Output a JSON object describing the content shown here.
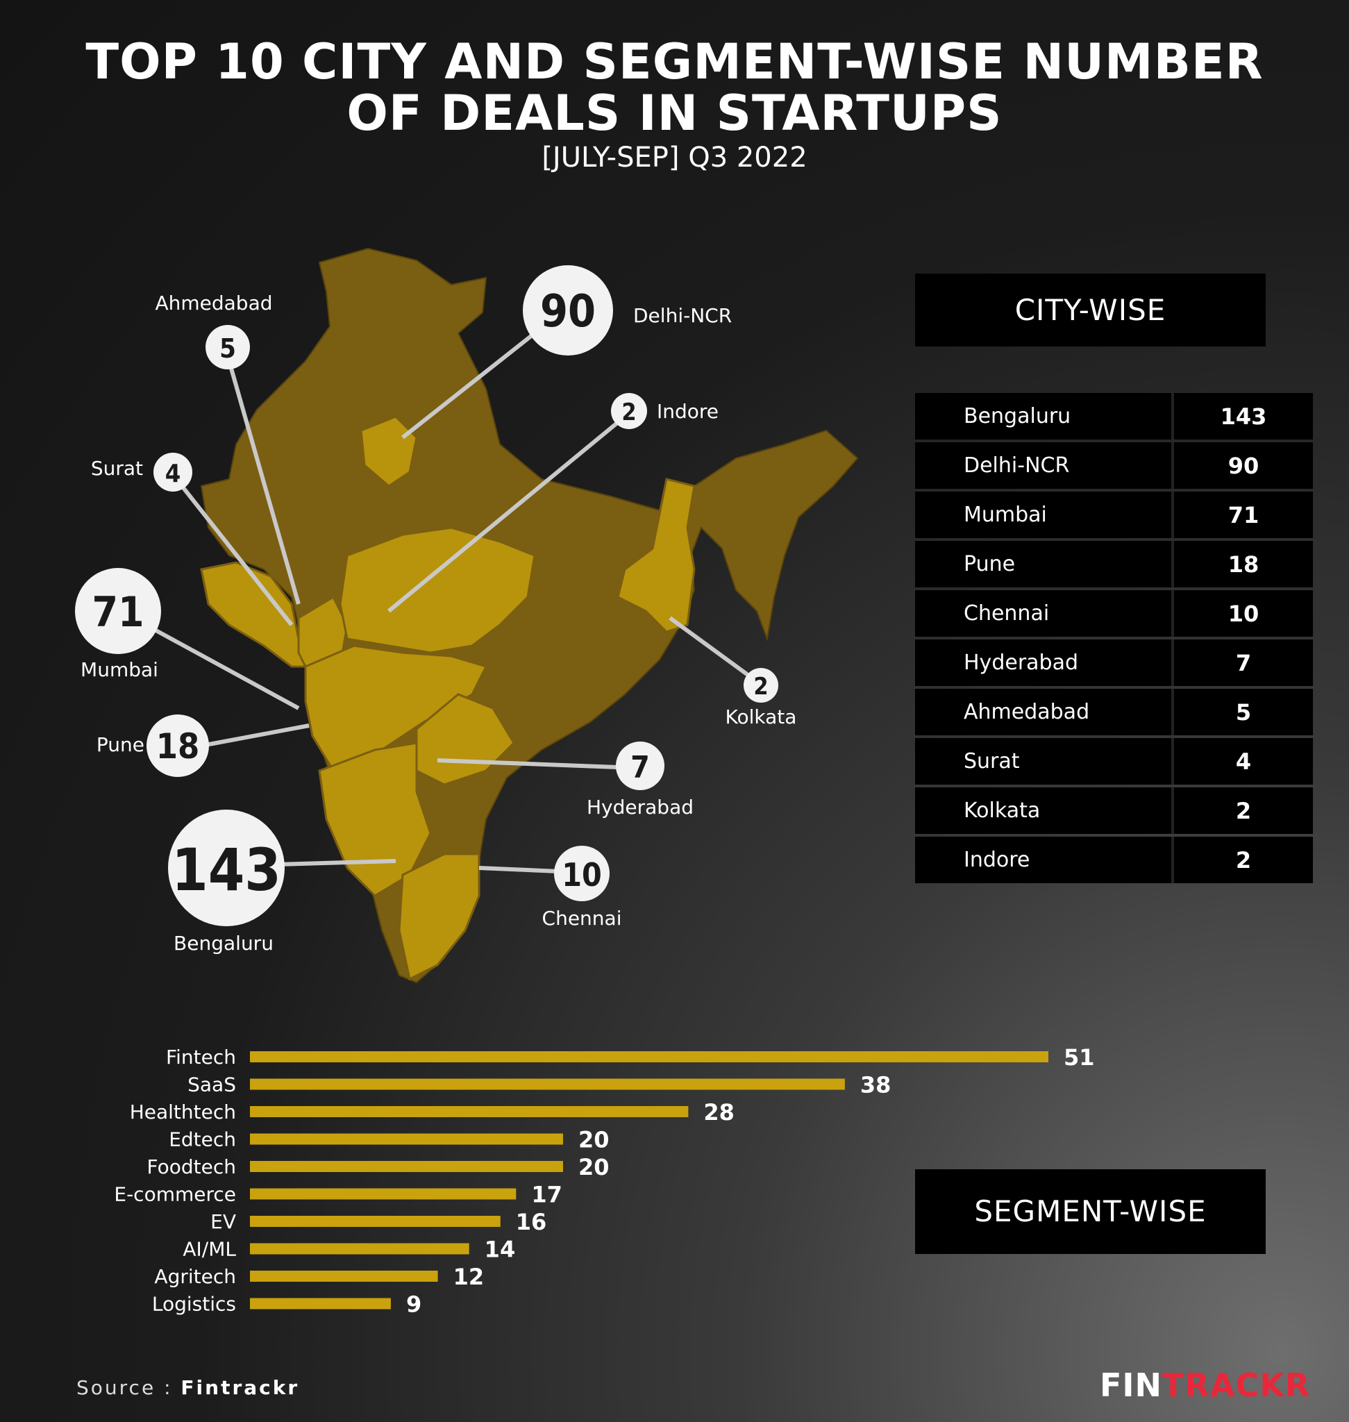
{
  "title_line1": "TOP 10 CITY AND SEGMENT-WISE NUMBER",
  "title_line2": "OF DEALS IN STARTUPS",
  "subtitle": "[JULY-SEP] Q3 2022",
  "city_header": "CITY-WISE",
  "segment_header": "SEGMENT-WISE",
  "source_label": "Source :",
  "source_name": "Fintrackr",
  "logo_part1": "FIN",
  "logo_part2": "TRACKR",
  "colors": {
    "map_dark": "#7a5e12",
    "map_gold": "#b8930c",
    "bar_gold": "#c9a20e",
    "bubble": "#f2f2f2",
    "logo_red": "#e8283a"
  },
  "chart_data": [
    {
      "type": "table",
      "title": "CITY-WISE",
      "rows": [
        {
          "city": "Bengaluru",
          "deals": 143
        },
        {
          "city": "Delhi-NCR",
          "deals": 90
        },
        {
          "city": "Mumbai",
          "deals": 71
        },
        {
          "city": "Pune",
          "deals": 18
        },
        {
          "city": "Chennai",
          "deals": 10
        },
        {
          "city": "Hyderabad",
          "deals": 7
        },
        {
          "city": "Ahmedabad",
          "deals": 5
        },
        {
          "city": "Surat",
          "deals": 4
        },
        {
          "city": "Kolkata",
          "deals": 2
        },
        {
          "city": "Indore",
          "deals": 2
        }
      ]
    },
    {
      "type": "bar",
      "title": "SEGMENT-WISE",
      "orientation": "horizontal",
      "categories": [
        "Fintech",
        "SaaS",
        "Healthtech",
        "Edtech",
        "Foodtech",
        "E-commerce",
        "EV",
        "AI/ML",
        "Agritech",
        "Logistics"
      ],
      "values": [
        51,
        38,
        28,
        20,
        20,
        17,
        16,
        14,
        12,
        9
      ],
      "xlim": [
        0,
        51
      ],
      "grid": false,
      "xlabel": "",
      "ylabel": ""
    }
  ]
}
